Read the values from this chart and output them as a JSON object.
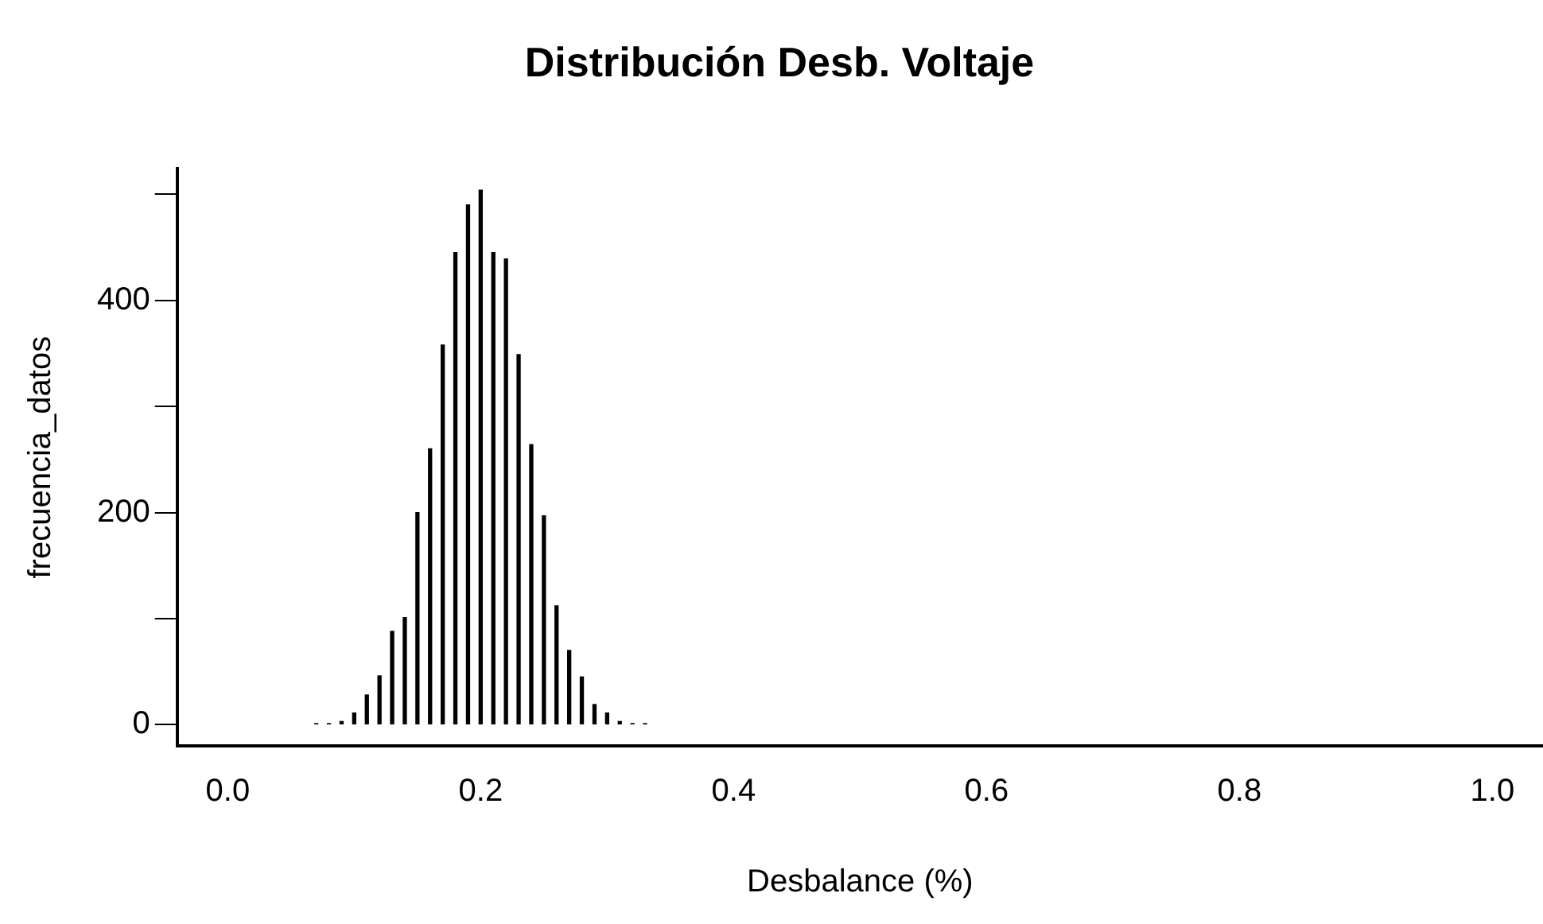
{
  "chart_data": {
    "type": "bar",
    "title": "Distribución Desb. Voltaje",
    "xlabel": "Desbalance (%)",
    "ylabel": "frecuencia_datos",
    "x": [
      0.07,
      0.08,
      0.09,
      0.1,
      0.11,
      0.12,
      0.13,
      0.14,
      0.15,
      0.16,
      0.17,
      0.18,
      0.19,
      0.2,
      0.21,
      0.22,
      0.23,
      0.24,
      0.25,
      0.26,
      0.27,
      0.28,
      0.29,
      0.3,
      0.31,
      0.32,
      0.33
    ],
    "values": [
      1,
      1,
      3,
      11,
      28,
      46,
      88,
      101,
      200,
      260,
      358,
      445,
      490,
      504,
      445,
      439,
      349,
      264,
      197,
      112,
      70,
      45,
      19,
      11,
      3,
      1,
      1
    ],
    "color": "#000000",
    "xlim": [
      -0.04,
      1.04
    ],
    "xticks": [
      {
        "value": 0,
        "label": "0.0"
      },
      0.2,
      0.4,
      0.6,
      0.8,
      {
        "value": 1,
        "label": "1.0"
      }
    ],
    "ylim": [
      -20,
      524
    ],
    "yticks": [
      0,
      {
        "value": 100,
        "label": null
      },
      200,
      {
        "value": 300,
        "label": null
      },
      400,
      {
        "value": 500,
        "label": null
      }
    ],
    "grid": false,
    "legend": false
  }
}
